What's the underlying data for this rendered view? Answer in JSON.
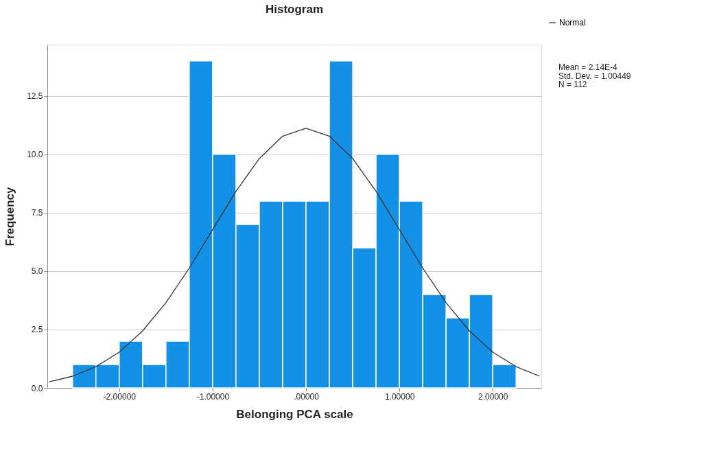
{
  "chart_data": {
    "type": "histogram",
    "title": "Histogram",
    "xlabel": "Belonging PCA scale",
    "ylabel": "Frequency",
    "bins": [
      -2.5,
      -2.25,
      -2.0,
      -1.75,
      -1.5,
      -1.25,
      -1.0,
      -0.75,
      -0.5,
      -0.25,
      0.0,
      0.25,
      0.5,
      0.75,
      1.0,
      1.25,
      1.5,
      1.75,
      2.0,
      2.25
    ],
    "values": [
      1,
      1,
      2,
      1,
      2,
      14,
      10,
      7,
      8,
      8,
      8,
      14,
      6,
      10,
      8,
      4,
      3,
      4,
      1
    ],
    "color": "#1490e6",
    "series": [
      {
        "name": "Normal",
        "type": "line",
        "color": "#333333",
        "x": [
          -2.75,
          -2.5,
          -2.25,
          -2.0,
          -1.75,
          -1.5,
          -1.25,
          -1.0,
          -0.75,
          -0.5,
          -0.25,
          0.0,
          0.25,
          0.5,
          0.75,
          1.0,
          1.25,
          1.5,
          1.75,
          2.0,
          2.25,
          2.5
        ],
        "values": [
          0.26,
          0.5,
          0.91,
          1.53,
          2.44,
          3.65,
          5.13,
          6.78,
          8.42,
          9.82,
          10.78,
          11.12,
          10.78,
          9.82,
          8.42,
          6.78,
          5.13,
          3.65,
          2.44,
          1.53,
          0.91,
          0.5
        ]
      }
    ],
    "xlim": [
      -2.77,
      2.52
    ],
    "ylim": [
      0,
      14.7
    ],
    "xticks": [
      {
        "value": -2,
        "label": "-2.00000"
      },
      {
        "value": -1,
        "label": "-1.00000"
      },
      {
        "value": 0,
        "label": ".00000"
      },
      {
        "value": 1,
        "label": "1.00000"
      },
      {
        "value": 2,
        "label": "2.00000"
      }
    ],
    "yticks": [
      {
        "value": 0,
        "label": "0.0"
      },
      2.5,
      {
        "value": 5,
        "label": "5.0"
      },
      7.5,
      {
        "value": 10,
        "label": "10.0"
      },
      12.5
    ],
    "grid": "y",
    "legend": "top right",
    "annotations": [
      "Mean = 2.14E-4",
      "Std. Dev. = 1.00449",
      "N = 112"
    ]
  }
}
